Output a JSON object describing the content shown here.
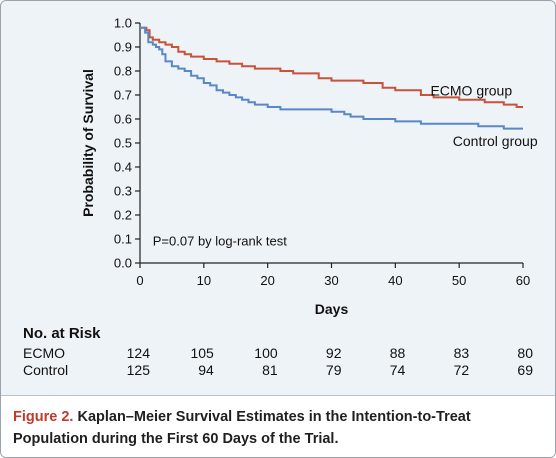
{
  "chart_data": {
    "type": "line",
    "xlabel": "Days",
    "ylabel": "Probability of Survival",
    "xlim": [
      0,
      60
    ],
    "ylim": [
      0,
      1.0
    ],
    "xticks": [
      0,
      10,
      20,
      30,
      40,
      50,
      60
    ],
    "xtick_labels": [
      "0",
      "10",
      "20",
      "30",
      "40",
      "50",
      "60"
    ],
    "yticks": [
      0.0,
      0.1,
      0.2,
      0.3,
      0.4,
      0.5,
      0.6,
      0.7,
      0.8,
      0.9,
      1.0
    ],
    "ytick_labels": [
      "0.0",
      "0.1",
      "0.2",
      "0.3",
      "0.4",
      "0.5",
      "0.6",
      "0.7",
      "0.8",
      "0.9",
      "1.0"
    ],
    "annotation": "P=0.07 by log-rank test",
    "step": true,
    "series": [
      {
        "name": "ECMO group",
        "color": "#c8523a",
        "x": [
          0,
          1,
          1.5,
          2,
          3,
          4,
          5,
          6,
          7,
          8,
          10,
          12,
          14,
          16,
          18,
          22,
          24,
          28,
          30,
          35,
          38,
          40,
          44,
          46,
          50,
          54,
          57,
          59
        ],
        "y": [
          0.98,
          0.97,
          0.94,
          0.93,
          0.92,
          0.91,
          0.9,
          0.88,
          0.87,
          0.86,
          0.85,
          0.84,
          0.83,
          0.82,
          0.81,
          0.8,
          0.79,
          0.77,
          0.76,
          0.75,
          0.73,
          0.72,
          0.7,
          0.69,
          0.68,
          0.67,
          0.66,
          0.65
        ]
      },
      {
        "name": "Control group",
        "color": "#5a87c6",
        "x": [
          0,
          0.8,
          1.3,
          2,
          2.5,
          3,
          3.5,
          4,
          5,
          6,
          7,
          8,
          9,
          10,
          11,
          12,
          13,
          14,
          15,
          16,
          17,
          18,
          20,
          22,
          30,
          32,
          33,
          35,
          40,
          44,
          53,
          57
        ],
        "y": [
          0.98,
          0.96,
          0.92,
          0.91,
          0.9,
          0.89,
          0.87,
          0.84,
          0.82,
          0.81,
          0.8,
          0.78,
          0.77,
          0.75,
          0.74,
          0.72,
          0.71,
          0.7,
          0.69,
          0.68,
          0.67,
          0.66,
          0.65,
          0.64,
          0.63,
          0.62,
          0.61,
          0.6,
          0.59,
          0.58,
          0.57,
          0.56
        ]
      }
    ]
  },
  "risk_table": {
    "title": "No. at Risk",
    "days": [
      0,
      10,
      20,
      30,
      40,
      50,
      60
    ],
    "rows": [
      {
        "label": "ECMO",
        "values": [
          "124",
          "105",
          "100",
          "92",
          "88",
          "83",
          "80"
        ]
      },
      {
        "label": "Control",
        "values": [
          "125",
          "94",
          "81",
          "79",
          "74",
          "72",
          "69"
        ]
      }
    ]
  },
  "caption": {
    "figure_label": "Figure 2.",
    "text": "Kaplan–Meier Survival Estimates in the Intention-to-Treat Population during the First 60 Days of the Trial."
  }
}
